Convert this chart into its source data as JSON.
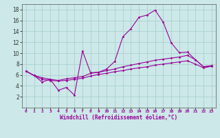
{
  "xlabel": "Windchill (Refroidissement éolien,°C)",
  "ylabel": "",
  "background_color": "#cce8e8",
  "grid_color": "#aacfcf",
  "line_color": "#990099",
  "x_values": [
    0,
    1,
    2,
    3,
    4,
    5,
    6,
    7,
    8,
    9,
    10,
    11,
    12,
    13,
    14,
    15,
    16,
    17,
    18,
    19,
    20,
    21,
    22,
    23
  ],
  "line1": [
    6.7,
    5.9,
    4.7,
    5.2,
    3.2,
    3.7,
    2.3,
    10.4,
    6.4,
    6.5,
    7.1,
    8.5,
    13.0,
    14.5,
    16.6,
    17.0,
    17.9,
    15.7,
    11.9,
    10.1,
    10.2,
    8.8,
    7.5,
    7.7
  ],
  "line2": [
    6.7,
    5.9,
    5.5,
    5.2,
    5.0,
    5.3,
    5.5,
    5.7,
    6.3,
    6.5,
    6.8,
    7.1,
    7.5,
    7.8,
    8.1,
    8.4,
    8.7,
    8.9,
    9.1,
    9.3,
    9.6,
    8.8,
    7.5,
    7.7
  ],
  "line3": [
    6.7,
    5.9,
    5.2,
    5.0,
    4.9,
    5.0,
    5.2,
    5.4,
    5.8,
    6.1,
    6.3,
    6.6,
    6.8,
    7.1,
    7.3,
    7.5,
    7.8,
    8.0,
    8.2,
    8.4,
    8.6,
    8.0,
    7.3,
    7.6
  ],
  "ylim": [
    0,
    19
  ],
  "xlim": [
    -0.5,
    23.5
  ],
  "yticks": [
    2,
    4,
    6,
    8,
    10,
    12,
    14,
    16,
    18
  ],
  "xticks": [
    0,
    1,
    2,
    3,
    4,
    5,
    6,
    7,
    8,
    9,
    10,
    11,
    12,
    13,
    14,
    15,
    16,
    17,
    18,
    19,
    20,
    21,
    22,
    23
  ]
}
